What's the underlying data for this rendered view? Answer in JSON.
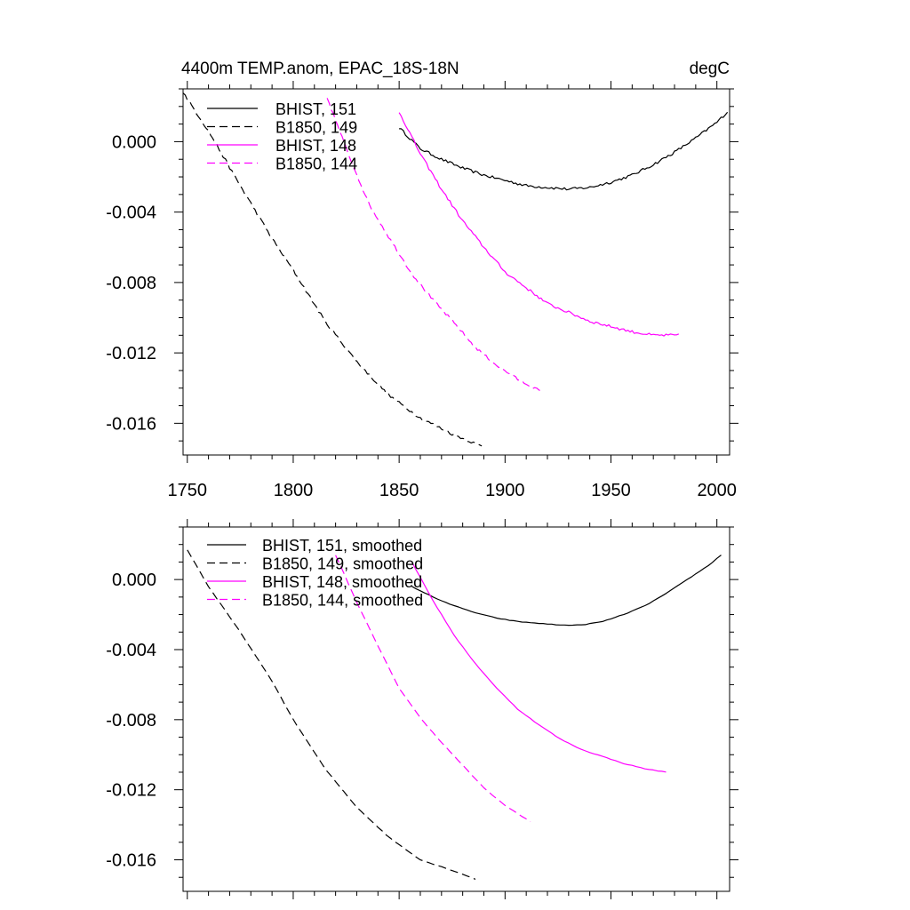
{
  "chart_data": [
    {
      "type": "line",
      "title": "4400m TEMP.anom, EPAC_18S-18N",
      "units": "degC",
      "xlim": [
        1748,
        2006
      ],
      "ylim": [
        -0.0178,
        0.003
      ],
      "xticks": [
        {
          "v": 1750,
          "label": "1750"
        },
        {
          "v": 1800,
          "label": "1800"
        },
        {
          "v": 1850,
          "label": "1850"
        },
        {
          "v": 1900,
          "label": "1900"
        },
        {
          "v": 1950,
          "label": "1950"
        },
        {
          "v": 2000,
          "label": "2000"
        }
      ],
      "yticks": [
        {
          "v": 0.0,
          "label": "0.000"
        },
        {
          "v": -0.004,
          "label": "-0.004"
        },
        {
          "v": -0.008,
          "label": "-0.008"
        },
        {
          "v": -0.012,
          "label": "-0.012"
        },
        {
          "v": -0.016,
          "label": "-0.016"
        }
      ],
      "legend_position": "top-left",
      "series": [
        {
          "name": "BHIST, 151",
          "color": "#000000",
          "dash": "solid",
          "x": [
            1850,
            1860,
            1870,
            1880,
            1890,
            1900,
            1910,
            1920,
            1930,
            1940,
            1950,
            1960,
            1970,
            1980,
            1990,
            2000,
            2005
          ],
          "y": [
            0.0008,
            -0.0004,
            -0.001,
            -0.0015,
            -0.0019,
            -0.0022,
            -0.0025,
            -0.0026,
            -0.0027,
            -0.0026,
            -0.0023,
            -0.0019,
            -0.0013,
            -0.0006,
            0.0002,
            0.0011,
            0.0017
          ]
        },
        {
          "name": "B1850, 149",
          "color": "#000000",
          "dash": "dashed",
          "x": [
            1748,
            1760,
            1775,
            1790,
            1800,
            1815,
            1830,
            1845,
            1860,
            1875,
            1889
          ],
          "y": [
            0.0028,
            0.0006,
            -0.0025,
            -0.0055,
            -0.0073,
            -0.0102,
            -0.0125,
            -0.0144,
            -0.0157,
            -0.0166,
            -0.0173
          ]
        },
        {
          "name": "BHIST, 148",
          "color": "#ff00ff",
          "dash": "solid",
          "x": [
            1850,
            1860,
            1870,
            1880,
            1890,
            1900,
            1910,
            1920,
            1930,
            1940,
            1950,
            1960,
            1970,
            1982
          ],
          "y": [
            0.0017,
            -0.0007,
            -0.0027,
            -0.0045,
            -0.006,
            -0.0074,
            -0.0083,
            -0.0092,
            -0.0097,
            -0.0102,
            -0.0105,
            -0.0108,
            -0.011,
            -0.011
          ]
        },
        {
          "name": "B1850, 144",
          "color": "#ff00ff",
          "dash": "dashed",
          "x": [
            1816,
            1826,
            1836,
            1846,
            1856,
            1866,
            1876,
            1886,
            1896,
            1906,
            1917
          ],
          "y": [
            0.0025,
            -0.0007,
            -0.0036,
            -0.0056,
            -0.0075,
            -0.009,
            -0.0103,
            -0.0117,
            -0.0127,
            -0.0135,
            -0.0142
          ]
        }
      ]
    },
    {
      "type": "line",
      "title": "",
      "units": "",
      "xlim": [
        1748,
        2006
      ],
      "ylim": [
        -0.0178,
        0.003
      ],
      "xticks": [
        {
          "v": 1750,
          "label": ""
        },
        {
          "v": 1800,
          "label": ""
        },
        {
          "v": 1850,
          "label": ""
        },
        {
          "v": 1900,
          "label": ""
        },
        {
          "v": 1950,
          "label": ""
        },
        {
          "v": 2000,
          "label": ""
        }
      ],
      "yticks": [
        {
          "v": 0.0,
          "label": "0.000"
        },
        {
          "v": -0.004,
          "label": "-0.004"
        },
        {
          "v": -0.008,
          "label": "-0.008"
        },
        {
          "v": -0.012,
          "label": "-0.012"
        },
        {
          "v": -0.016,
          "label": "-0.016"
        }
      ],
      "legend_position": "top-left",
      "series": [
        {
          "name": "BHIST, 151, smoothed",
          "color": "#000000",
          "dash": "solid",
          "x": [
            1856,
            1866,
            1876,
            1886,
            1896,
            1906,
            1916,
            1926,
            1936,
            1946,
            1956,
            1966,
            1976,
            1986,
            1996,
            2002
          ],
          "y": [
            -0.0004,
            -0.001,
            -0.0015,
            -0.0019,
            -0.0022,
            -0.0024,
            -0.0025,
            -0.0026,
            -0.0026,
            -0.0024,
            -0.002,
            -0.0015,
            -0.0008,
            0.0,
            0.0008,
            0.0014
          ]
        },
        {
          "name": "B1850, 149, smoothed",
          "color": "#000000",
          "dash": "dashed",
          "x": [
            1750,
            1760,
            1775,
            1790,
            1800,
            1815,
            1830,
            1845,
            1860,
            1875,
            1886
          ],
          "y": [
            0.0017,
            -0.0004,
            -0.003,
            -0.0058,
            -0.008,
            -0.0108,
            -0.013,
            -0.0147,
            -0.016,
            -0.0166,
            -0.0171
          ]
        },
        {
          "name": "BHIST, 148, smoothed",
          "color": "#ff00ff",
          "dash": "solid",
          "x": [
            1856,
            1866,
            1876,
            1886,
            1896,
            1906,
            1916,
            1926,
            1936,
            1946,
            1956,
            1966,
            1976
          ],
          "y": [
            0.001,
            -0.0012,
            -0.0032,
            -0.0048,
            -0.0062,
            -0.0074,
            -0.0083,
            -0.0091,
            -0.0097,
            -0.0101,
            -0.0105,
            -0.0108,
            -0.011
          ]
        },
        {
          "name": "B1850, 144, smoothed",
          "color": "#ff00ff",
          "dash": "dashed",
          "x": [
            1820,
            1830,
            1840,
            1850,
            1860,
            1870,
            1880,
            1890,
            1900,
            1913
          ],
          "y": [
            0.0014,
            -0.0013,
            -0.0038,
            -0.0062,
            -0.0079,
            -0.0093,
            -0.0106,
            -0.0119,
            -0.0129,
            -0.0139
          ]
        }
      ]
    }
  ]
}
